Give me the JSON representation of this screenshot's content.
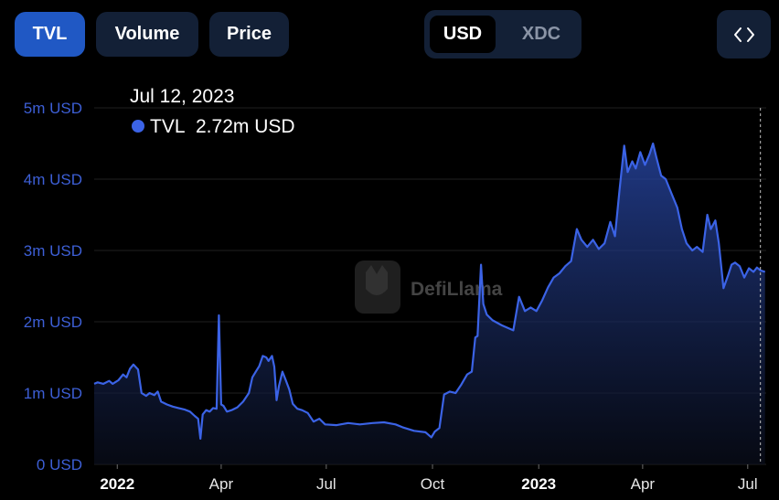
{
  "tabs": [
    {
      "label": "TVL",
      "active": true
    },
    {
      "label": "Volume",
      "active": false
    },
    {
      "label": "Price",
      "active": false
    }
  ],
  "currency": {
    "options": [
      "USD",
      "XDC"
    ],
    "selected": "USD"
  },
  "embed_icon": "code-brackets-icon",
  "watermark": "DefiLlama",
  "tooltip": {
    "date": "Jul 12, 2023",
    "series": "TVL",
    "value": "2.72m USD"
  },
  "colors": {
    "line": "#3b63e6",
    "active_tab": "#2058c4",
    "button_bg": "#132036"
  },
  "chart_data": {
    "type": "area",
    "series": [
      {
        "name": "TVL"
      }
    ],
    "y_ticks": [
      "0 USD",
      "1m USD",
      "2m USD",
      "3m USD",
      "4m USD",
      "5m USD"
    ],
    "ylim": [
      0,
      5000000
    ],
    "x_ticks": [
      {
        "label": "2022",
        "date": "2022-01-01",
        "bold": true
      },
      {
        "label": "Apr",
        "date": "2022-04-01",
        "bold": false
      },
      {
        "label": "Jul",
        "date": "2022-07-01",
        "bold": false
      },
      {
        "label": "Oct",
        "date": "2022-10-01",
        "bold": false
      },
      {
        "label": "2023",
        "date": "2023-01-01",
        "bold": true
      },
      {
        "label": "Apr",
        "date": "2023-04-01",
        "bold": false
      },
      {
        "label": "Jul",
        "date": "2023-07-01",
        "bold": false
      }
    ],
    "x_range": [
      "2021-12-12",
      "2023-07-17"
    ],
    "grid": true,
    "points": [
      [
        "2021-12-12",
        1130000
      ],
      [
        "2021-12-15",
        1150000
      ],
      [
        "2021-12-20",
        1130000
      ],
      [
        "2021-12-25",
        1170000
      ],
      [
        "2021-12-28",
        1130000
      ],
      [
        "2022-01-02",
        1180000
      ],
      [
        "2022-01-06",
        1260000
      ],
      [
        "2022-01-09",
        1220000
      ],
      [
        "2022-01-12",
        1340000
      ],
      [
        "2022-01-15",
        1400000
      ],
      [
        "2022-01-19",
        1330000
      ],
      [
        "2022-01-22",
        1000000
      ],
      [
        "2022-01-26",
        960000
      ],
      [
        "2022-01-29",
        1000000
      ],
      [
        "2022-02-02",
        970000
      ],
      [
        "2022-02-05",
        1020000
      ],
      [
        "2022-02-08",
        880000
      ],
      [
        "2022-02-13",
        840000
      ],
      [
        "2022-02-18",
        810000
      ],
      [
        "2022-02-23",
        790000
      ],
      [
        "2022-02-28",
        770000
      ],
      [
        "2022-03-05",
        740000
      ],
      [
        "2022-03-09",
        680000
      ],
      [
        "2022-03-12",
        640000
      ],
      [
        "2022-03-14",
        360000
      ],
      [
        "2022-03-16",
        700000
      ],
      [
        "2022-03-19",
        760000
      ],
      [
        "2022-03-22",
        740000
      ],
      [
        "2022-03-25",
        790000
      ],
      [
        "2022-03-28",
        780000
      ],
      [
        "2022-03-30",
        2090000
      ],
      [
        "2022-04-01",
        840000
      ],
      [
        "2022-04-03",
        820000
      ],
      [
        "2022-04-06",
        740000
      ],
      [
        "2022-04-10",
        760000
      ],
      [
        "2022-04-15",
        800000
      ],
      [
        "2022-04-20",
        880000
      ],
      [
        "2022-04-25",
        1000000
      ],
      [
        "2022-04-28",
        1220000
      ],
      [
        "2022-05-01",
        1300000
      ],
      [
        "2022-05-04",
        1380000
      ],
      [
        "2022-05-07",
        1520000
      ],
      [
        "2022-05-10",
        1500000
      ],
      [
        "2022-05-12",
        1450000
      ],
      [
        "2022-05-15",
        1520000
      ],
      [
        "2022-05-17",
        1370000
      ],
      [
        "2022-05-19",
        900000
      ],
      [
        "2022-05-21",
        1100000
      ],
      [
        "2022-05-24",
        1300000
      ],
      [
        "2022-05-27",
        1180000
      ],
      [
        "2022-05-30",
        1050000
      ],
      [
        "2022-06-02",
        850000
      ],
      [
        "2022-06-06",
        780000
      ],
      [
        "2022-06-10",
        760000
      ],
      [
        "2022-06-15",
        720000
      ],
      [
        "2022-06-20",
        600000
      ],
      [
        "2022-06-25",
        640000
      ],
      [
        "2022-06-30",
        560000
      ],
      [
        "2022-07-10",
        550000
      ],
      [
        "2022-07-20",
        580000
      ],
      [
        "2022-07-30",
        560000
      ],
      [
        "2022-08-10",
        580000
      ],
      [
        "2022-08-20",
        590000
      ],
      [
        "2022-08-30",
        560000
      ],
      [
        "2022-09-05",
        520000
      ],
      [
        "2022-09-15",
        470000
      ],
      [
        "2022-09-25",
        450000
      ],
      [
        "2022-09-30",
        380000
      ],
      [
        "2022-10-03",
        460000
      ],
      [
        "2022-10-07",
        510000
      ],
      [
        "2022-10-11",
        980000
      ],
      [
        "2022-10-16",
        1020000
      ],
      [
        "2022-10-21",
        1000000
      ],
      [
        "2022-10-26",
        1120000
      ],
      [
        "2022-10-31",
        1260000
      ],
      [
        "2022-11-04",
        1300000
      ],
      [
        "2022-11-07",
        1780000
      ],
      [
        "2022-11-09",
        1800000
      ],
      [
        "2022-11-12",
        2800000
      ],
      [
        "2022-11-14",
        2250000
      ],
      [
        "2022-11-17",
        2100000
      ],
      [
        "2022-11-22",
        2020000
      ],
      [
        "2022-11-30",
        1950000
      ],
      [
        "2022-12-10",
        1880000
      ],
      [
        "2022-12-15",
        2350000
      ],
      [
        "2022-12-20",
        2150000
      ],
      [
        "2022-12-25",
        2200000
      ],
      [
        "2022-12-30",
        2150000
      ],
      [
        "2023-01-04",
        2300000
      ],
      [
        "2023-01-09",
        2480000
      ],
      [
        "2023-01-14",
        2620000
      ],
      [
        "2023-01-19",
        2680000
      ],
      [
        "2023-01-24",
        2780000
      ],
      [
        "2023-01-29",
        2850000
      ],
      [
        "2023-02-03",
        3300000
      ],
      [
        "2023-02-07",
        3150000
      ],
      [
        "2023-02-12",
        3050000
      ],
      [
        "2023-02-17",
        3150000
      ],
      [
        "2023-02-22",
        3020000
      ],
      [
        "2023-02-27",
        3100000
      ],
      [
        "2023-03-04",
        3400000
      ],
      [
        "2023-03-08",
        3200000
      ],
      [
        "2023-03-12",
        3850000
      ],
      [
        "2023-03-16",
        4470000
      ],
      [
        "2023-03-19",
        4100000
      ],
      [
        "2023-03-23",
        4250000
      ],
      [
        "2023-03-26",
        4150000
      ],
      [
        "2023-03-30",
        4380000
      ],
      [
        "2023-04-03",
        4200000
      ],
      [
        "2023-04-07",
        4350000
      ],
      [
        "2023-04-10",
        4500000
      ],
      [
        "2023-04-13",
        4300000
      ],
      [
        "2023-04-17",
        4050000
      ],
      [
        "2023-04-21",
        4000000
      ],
      [
        "2023-04-26",
        3800000
      ],
      [
        "2023-05-01",
        3600000
      ],
      [
        "2023-05-05",
        3300000
      ],
      [
        "2023-05-09",
        3100000
      ],
      [
        "2023-05-14",
        3000000
      ],
      [
        "2023-05-18",
        3050000
      ],
      [
        "2023-05-23",
        2980000
      ],
      [
        "2023-05-27",
        3500000
      ],
      [
        "2023-05-30",
        3300000
      ],
      [
        "2023-06-03",
        3420000
      ],
      [
        "2023-06-06",
        3100000
      ],
      [
        "2023-06-10",
        2470000
      ],
      [
        "2023-06-14",
        2650000
      ],
      [
        "2023-06-17",
        2800000
      ],
      [
        "2023-06-20",
        2830000
      ],
      [
        "2023-06-24",
        2780000
      ],
      [
        "2023-06-28",
        2620000
      ],
      [
        "2023-07-02",
        2750000
      ],
      [
        "2023-07-06",
        2700000
      ],
      [
        "2023-07-09",
        2760000
      ],
      [
        "2023-07-12",
        2720000
      ],
      [
        "2023-07-16",
        2700000
      ]
    ]
  }
}
